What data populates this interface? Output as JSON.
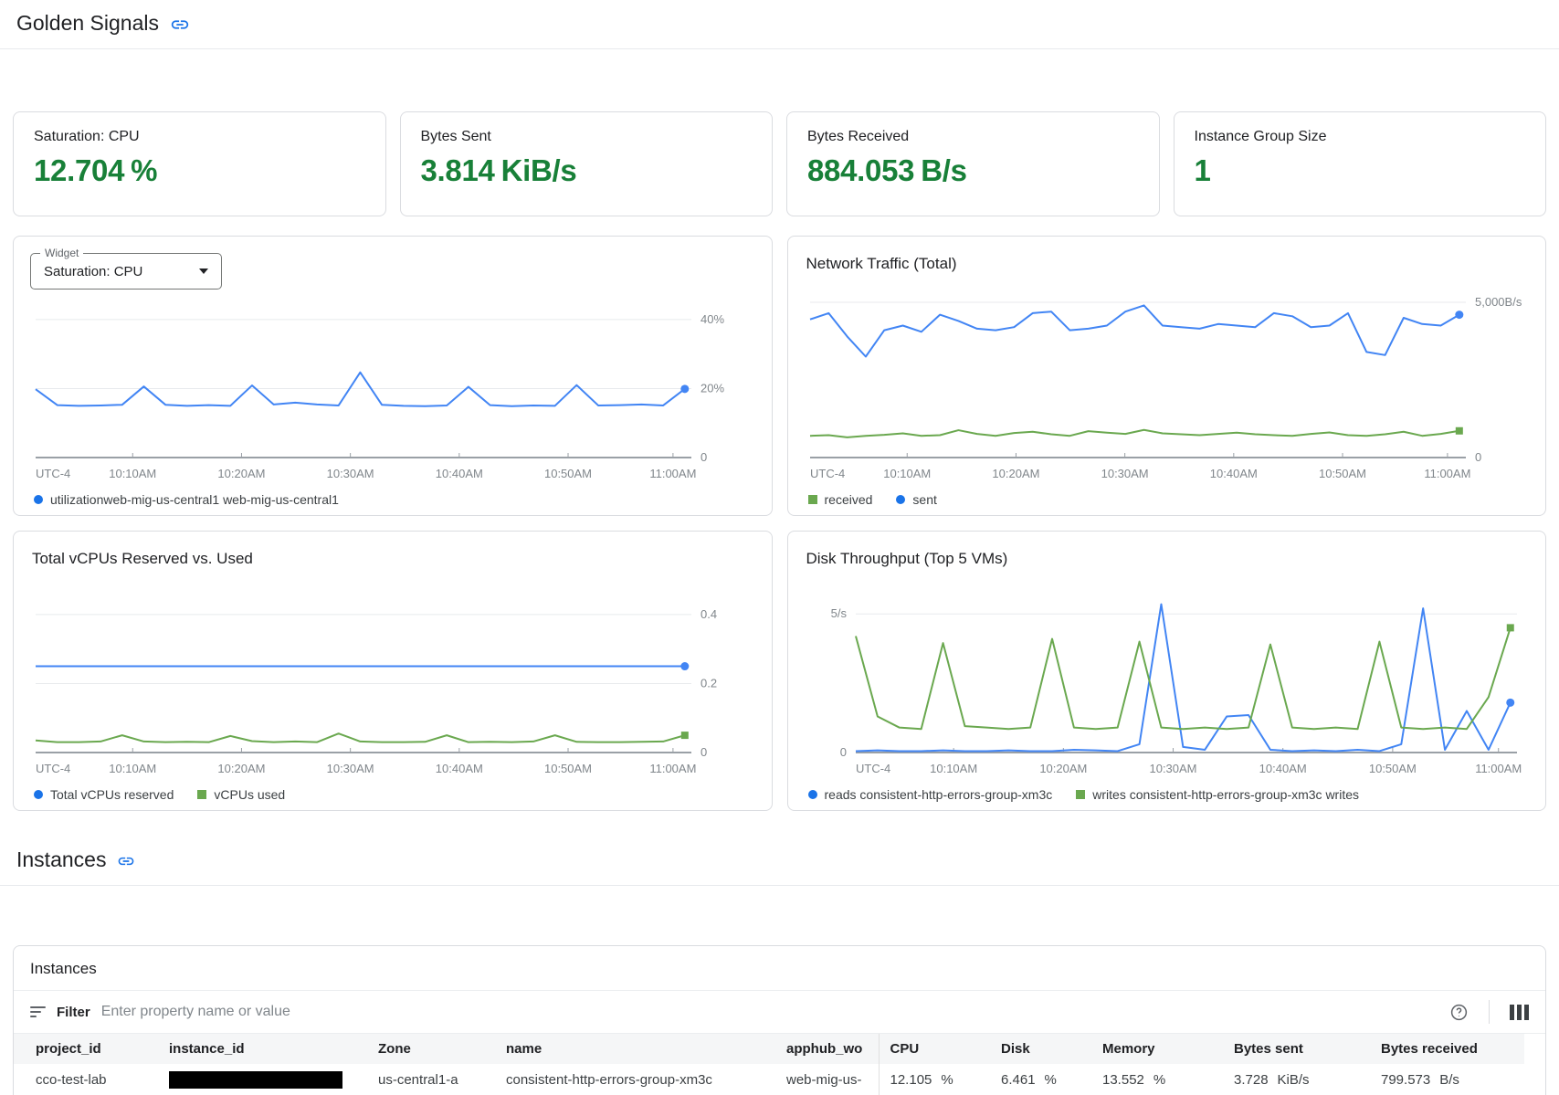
{
  "header": {
    "title": "Golden Signals"
  },
  "instances_header": {
    "title": "Instances"
  },
  "widget_select": {
    "label": "Widget",
    "value": "Saturation: CPU"
  },
  "colors": {
    "line_blue": "#4285f4",
    "line_green": "#6aa84f",
    "legend_blue": "#1a73e8",
    "metric_green": "#188038",
    "link_blue": "#1a73e8"
  },
  "scorecards": [
    {
      "label": "Saturation: CPU",
      "value": "12.704",
      "unit": "%"
    },
    {
      "label": "Bytes Sent",
      "value": "3.814",
      "unit": "KiB/s"
    },
    {
      "label": "Bytes Received",
      "value": "884.053",
      "unit": "B/s"
    },
    {
      "label": "Instance Group Size",
      "value": "1",
      "unit": ""
    }
  ],
  "chart_data": [
    {
      "type": "line",
      "title": "",
      "x_labels": [
        "UTC-4",
        "10:10AM",
        "10:20AM",
        "10:30AM",
        "10:40AM",
        "10:50AM",
        "11:00AM"
      ],
      "ylim": [
        0,
        45
      ],
      "yticks": [
        {
          "v": 40,
          "label": "40%"
        },
        {
          "v": 20,
          "label": "20%"
        },
        {
          "v": 0,
          "label": "0"
        }
      ],
      "axis_side": "right",
      "series": [
        {
          "name": "utilizationweb-mig-us-central1 web-mig-us-central1",
          "color": "#4285f4",
          "marker": "circle",
          "values": [
            19.8,
            15.2,
            15.0,
            15.1,
            15.3,
            20.6,
            15.3,
            15.0,
            15.2,
            15.0,
            20.9,
            15.4,
            15.9,
            15.4,
            15.1,
            24.7,
            15.3,
            15.0,
            14.9,
            15.1,
            20.5,
            15.2,
            14.9,
            15.1,
            15.0,
            21.0,
            15.1,
            15.2,
            15.4,
            15.1,
            19.9
          ]
        }
      ],
      "legend": [
        {
          "label": "utilizationweb-mig-us-central1 web-mig-us-central1",
          "color": "#1a73e8",
          "marker": "circle"
        }
      ]
    },
    {
      "type": "line",
      "title": "Network Traffic (Total)",
      "x_labels": [
        "UTC-4",
        "10:10AM",
        "10:20AM",
        "10:30AM",
        "10:40AM",
        "10:50AM",
        "11:00AM"
      ],
      "ylim": [
        0,
        5000
      ],
      "yticks": [
        {
          "v": 5000,
          "label": "5,000B/s"
        },
        {
          "v": 0,
          "label": "0"
        }
      ],
      "axis_side": "right",
      "series": [
        {
          "name": "sent",
          "color": "#4285f4",
          "marker": "circle",
          "values": [
            4450,
            4650,
            3900,
            3250,
            4100,
            4250,
            4050,
            4600,
            4400,
            4150,
            4100,
            4200,
            4650,
            4700,
            4100,
            4150,
            4250,
            4700,
            4900,
            4250,
            4200,
            4150,
            4300,
            4250,
            4200,
            4650,
            4550,
            4200,
            4250,
            4650,
            3400,
            3300,
            4500,
            4300,
            4250,
            4600
          ]
        },
        {
          "name": "received",
          "color": "#6aa84f",
          "marker": "square",
          "values": [
            700,
            720,
            650,
            700,
            730,
            780,
            700,
            720,
            880,
            760,
            700,
            790,
            830,
            750,
            700,
            850,
            800,
            760,
            890,
            780,
            750,
            720,
            760,
            800,
            750,
            720,
            700,
            760,
            810,
            720,
            700,
            750,
            830,
            700,
            760,
            860
          ]
        }
      ],
      "legend": [
        {
          "label": "received",
          "color": "#6aa84f",
          "marker": "square"
        },
        {
          "label": "sent",
          "color": "#1a73e8",
          "marker": "circle"
        }
      ]
    },
    {
      "type": "line",
      "title": "Total vCPUs Reserved vs. Used",
      "x_labels": [
        "UTC-4",
        "10:10AM",
        "10:20AM",
        "10:30AM",
        "10:40AM",
        "10:50AM",
        "11:00AM"
      ],
      "ylim": [
        0,
        0.45
      ],
      "yticks": [
        {
          "v": 0.4,
          "label": "0.4"
        },
        {
          "v": 0.2,
          "label": "0.2"
        },
        {
          "v": 0,
          "label": "0"
        }
      ],
      "axis_side": "right",
      "series": [
        {
          "name": "Total vCPUs reserved",
          "color": "#4285f4",
          "marker": "circle",
          "values": [
            0.25,
            0.25,
            0.25,
            0.25,
            0.25,
            0.25,
            0.25,
            0.25,
            0.25,
            0.25,
            0.25,
            0.25,
            0.25,
            0.25,
            0.25,
            0.25,
            0.25,
            0.25,
            0.25,
            0.25,
            0.25,
            0.25,
            0.25,
            0.25,
            0.25,
            0.25,
            0.25,
            0.25,
            0.25,
            0.25,
            0.25
          ]
        },
        {
          "name": "vCPUs used",
          "color": "#6aa84f",
          "marker": "square",
          "values": [
            0.035,
            0.03,
            0.03,
            0.032,
            0.05,
            0.032,
            0.03,
            0.031,
            0.03,
            0.048,
            0.033,
            0.03,
            0.032,
            0.03,
            0.055,
            0.032,
            0.03,
            0.03,
            0.031,
            0.05,
            0.03,
            0.031,
            0.03,
            0.032,
            0.05,
            0.031,
            0.03,
            0.03,
            0.031,
            0.032,
            0.05
          ]
        }
      ],
      "legend": [
        {
          "label": "Total vCPUs reserved",
          "color": "#1a73e8",
          "marker": "circle"
        },
        {
          "label": "vCPUs used",
          "color": "#6aa84f",
          "marker": "square"
        }
      ]
    },
    {
      "type": "line",
      "title": "Disk Throughput (Top 5 VMs)",
      "x_labels": [
        "UTC-4",
        "10:10AM",
        "10:20AM",
        "10:30AM",
        "10:40AM",
        "10:50AM",
        "11:00AM"
      ],
      "ylim": [
        0,
        5.6
      ],
      "yticks": [
        {
          "v": 5,
          "label": "5/s"
        },
        {
          "v": 0,
          "label": "0"
        }
      ],
      "axis_side": "left",
      "series": [
        {
          "name": "reads consistent-http-errors-group-xm3c",
          "color": "#4285f4",
          "marker": "circle",
          "values": [
            0.05,
            0.08,
            0.05,
            0.05,
            0.08,
            0.05,
            0.05,
            0.08,
            0.05,
            0.05,
            0.1,
            0.08,
            0.05,
            0.3,
            5.35,
            0.2,
            0.1,
            1.3,
            1.35,
            0.1,
            0.05,
            0.08,
            0.05,
            0.1,
            0.05,
            0.3,
            5.2,
            0.1,
            1.5,
            0.1,
            1.8
          ]
        },
        {
          "name": "writes consistent-http-errors-group-xm3c writes",
          "color": "#6aa84f",
          "marker": "square",
          "values": [
            4.2,
            1.3,
            0.9,
            0.85,
            3.95,
            0.95,
            0.9,
            0.85,
            0.9,
            4.1,
            0.9,
            0.85,
            0.9,
            4.0,
            0.9,
            0.85,
            0.9,
            0.85,
            0.9,
            3.9,
            0.9,
            0.85,
            0.9,
            0.85,
            4.0,
            0.9,
            0.85,
            0.9,
            0.85,
            2.0,
            4.5
          ]
        }
      ],
      "legend": [
        {
          "label": "reads consistent-http-errors-group-xm3c",
          "color": "#1a73e8",
          "marker": "circle"
        },
        {
          "label": "writes consistent-http-errors-group-xm3c writes",
          "color": "#6aa84f",
          "marker": "square"
        }
      ]
    }
  ],
  "table": {
    "title": "Instances",
    "filter": {
      "label": "Filter",
      "placeholder": "Enter property name or value"
    },
    "columns": [
      "project_id",
      "instance_id",
      "Zone",
      "name",
      "apphub_wo",
      "CPU",
      "Disk",
      "Memory",
      "Bytes sent",
      "Bytes received"
    ],
    "rows": [
      [
        "cco-test-lab",
        {
          "redacted": true
        },
        "us-central1-a",
        "consistent-http-errors-group-xm3c",
        "web-mig-us-",
        {
          "value": "12.105",
          "unit": "%"
        },
        {
          "value": "6.461",
          "unit": "%"
        },
        {
          "value": "13.552",
          "unit": "%"
        },
        {
          "value": "3.728",
          "unit": "KiB/s"
        },
        {
          "value": "799.573",
          "unit": "B/s"
        }
      ]
    ]
  }
}
